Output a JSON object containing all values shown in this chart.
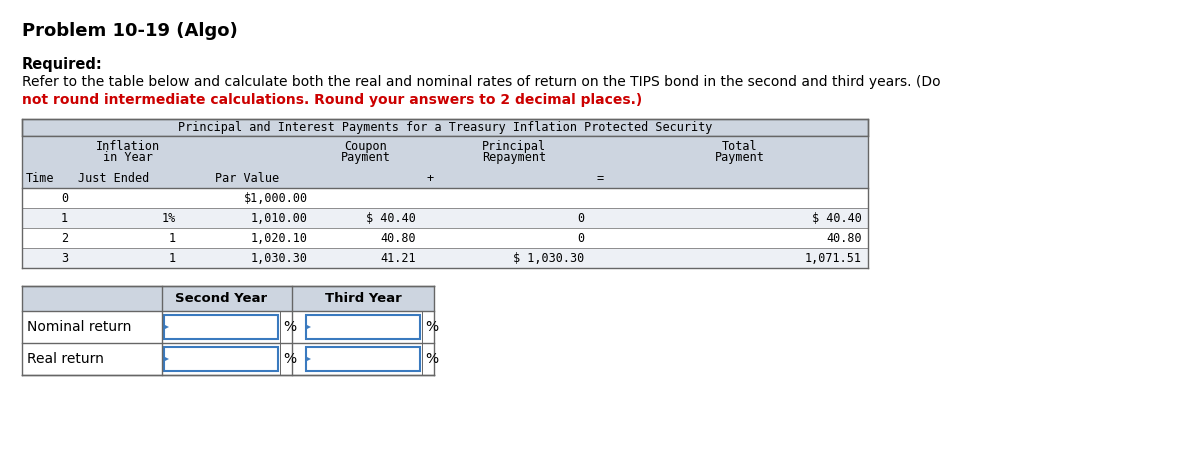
{
  "title": "Problem 10-19 (Algo)",
  "required_label": "Required:",
  "instruction_line1": "Refer to the table below and calculate both the real and nominal rates of return on the TIPS bond in the second and third years. (Do",
  "instruction_line2_normal": "not round intermediate calculations. Round your answers to 2 decimal places.)",
  "instruction_line2_bold_prefix": "not round intermediate calculations. Round your answers to 2 decimal places.)",
  "main_table_title": "Principal and Interest Payments for a Treasury Inflation Protected Security",
  "bg_color": "#ffffff",
  "table_header_bg": "#cdd5e0",
  "table_title_bg": "#cdd5e0",
  "row_alt_bg": "#edf0f5",
  "border_color": "#666666",
  "input_border_color": "#3a7abf",
  "mono_font": "DejaVu Sans Mono",
  "sans_font": "DejaVu Sans",
  "row_data": [
    [
      "0",
      "",
      "$1,000.00",
      "",
      "",
      ""
    ],
    [
      "1",
      "1%",
      "1,010.00",
      "$ 40.40",
      "0",
      "$ 40.40"
    ],
    [
      "2",
      "1",
      "1,020.10",
      "40.80",
      "0",
      "40.80"
    ],
    [
      "3",
      "1",
      "1,030.30",
      "41.21",
      "$ 1,030.30",
      "1,071.51"
    ]
  ]
}
